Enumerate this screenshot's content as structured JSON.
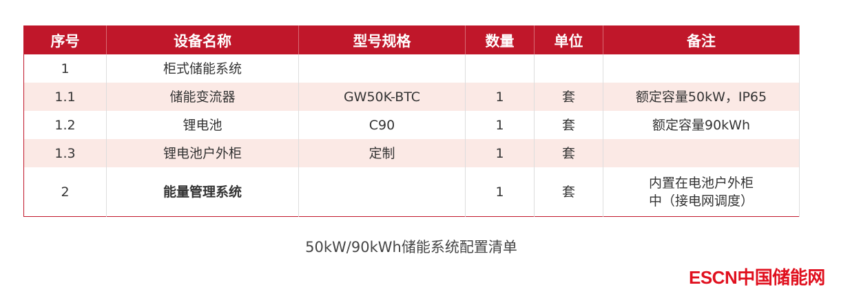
{
  "table": {
    "headers": [
      "序号",
      "设备名称",
      "型号规格",
      "数量",
      "单位",
      "备注"
    ],
    "rows": [
      [
        "1",
        "柜式储能系统",
        "",
        "",
        "",
        ""
      ],
      [
        "1.1",
        "储能变流器",
        "GW50K-BTC",
        "1",
        "套",
        "额定容量50kW，IP65"
      ],
      [
        "1.2",
        "锂电池",
        "C90",
        "1",
        "套",
        "额定容量90kWh"
      ],
      [
        "1.3",
        "锂电池户外柜",
        "定制",
        "1",
        "套",
        ""
      ],
      [
        "2",
        "能量管理系统",
        "",
        "1",
        "套",
        "内置在电池户外柜中（接电网调度）"
      ]
    ]
  },
  "caption": "50kW/90kWh储能系统配置清单",
  "logo": "ESCN中国储能网",
  "colors": {
    "header": "#c0172a",
    "stripe": "#fbe9e5",
    "logo": "#e0101e"
  }
}
